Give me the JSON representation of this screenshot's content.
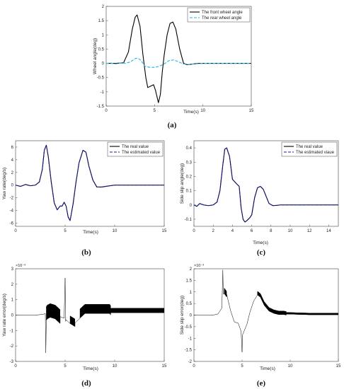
{
  "chart_data": [
    {
      "panel": "(a)",
      "type": "line",
      "xlabel": "Time(s)",
      "ylabel": "Wheel angle(deg)",
      "xlim": [
        0,
        15
      ],
      "ylim": [
        -1.5,
        2
      ],
      "xticks": [
        0,
        5,
        10,
        15
      ],
      "yticks": [
        -1.5,
        -1,
        -0.5,
        0,
        0.5,
        1,
        1.5,
        2
      ],
      "grid": false,
      "legend": "top-right",
      "series": [
        {
          "name": "The front wheel angle",
          "color": "#000000",
          "dash": "solid",
          "x": [
            0,
            1,
            1.8,
            2.3,
            2.7,
            3.0,
            3.2,
            3.5,
            3.8,
            4.1,
            4.3,
            4.6,
            4.9,
            5.1,
            5.4,
            5.6,
            5.8,
            6.0,
            6.3,
            6.6,
            6.9,
            7.2,
            7.6,
            8.0,
            8.4,
            8.8,
            9.5,
            11,
            15
          ],
          "y": [
            0,
            0,
            0.02,
            0.4,
            1.2,
            1.62,
            1.7,
            1.3,
            0.3,
            -0.5,
            -0.85,
            -0.8,
            -0.75,
            -0.95,
            -1.38,
            -1.1,
            -0.3,
            0.3,
            1.0,
            1.4,
            1.45,
            1.2,
            0.5,
            0,
            -0.05,
            -0.03,
            0,
            0,
            0
          ]
        },
        {
          "name": "The rear wheel angle",
          "color": "#1eb4e6",
          "dash": "dashed",
          "x": [
            0,
            0.5,
            1,
            1.5,
            2,
            2.5,
            3.0,
            3.3,
            3.6,
            4.0,
            4.5,
            5.0,
            5.5,
            6.0,
            6.5,
            7.0,
            7.5,
            8.0,
            8.5,
            9.0,
            10,
            12,
            15
          ],
          "y": [
            0,
            0.01,
            -0.02,
            0.02,
            0,
            0.05,
            0.17,
            0.18,
            0.1,
            -0.1,
            -0.14,
            -0.14,
            -0.1,
            -0.02,
            0.1,
            0.12,
            0.05,
            -0.02,
            -0.04,
            -0.02,
            0,
            0,
            0
          ]
        }
      ]
    },
    {
      "panel": "(b)",
      "type": "line",
      "xlabel": "Time(s)",
      "ylabel": "Yaw rate(deg/s)",
      "xlim": [
        0,
        15
      ],
      "ylim": [
        -6.5,
        7
      ],
      "xticks": [
        0,
        5,
        10,
        15
      ],
      "yticks": [
        -6,
        -4,
        -2,
        0,
        2,
        4,
        6
      ],
      "grid": false,
      "legend": "top-right",
      "series": [
        {
          "name": "The real value",
          "color": "#000000",
          "dash": "solid",
          "x": [
            0,
            0.5,
            1,
            1.5,
            2,
            2.4,
            2.7,
            2.9,
            3.1,
            3.3,
            3.6,
            3.9,
            4.2,
            4.5,
            4.7,
            4.9,
            5.1,
            5.3,
            5.5,
            5.8,
            6.1,
            6.4,
            6.8,
            7.1,
            7.4,
            7.8,
            8.2,
            8.7,
            9.3,
            10,
            12,
            15
          ],
          "y": [
            0,
            -0.2,
            0.1,
            -0.1,
            0,
            0.5,
            2.5,
            5.5,
            6.3,
            4.5,
            0.5,
            -2.8,
            -3.9,
            -3.3,
            -3.3,
            -2.7,
            -3.3,
            -5.0,
            -5.6,
            -3.0,
            0.5,
            3.5,
            5.5,
            5.2,
            3.0,
            0.8,
            -0.3,
            -0.3,
            -0.15,
            0,
            0,
            0
          ]
        },
        {
          "name": "The estimated value",
          "color": "#1a1aa6",
          "dash": "dashed",
          "x": [
            0,
            0.5,
            1,
            1.5,
            2,
            2.4,
            2.7,
            2.9,
            3.1,
            3.3,
            3.6,
            3.9,
            4.2,
            4.5,
            4.7,
            4.9,
            5.1,
            5.3,
            5.5,
            5.8,
            6.1,
            6.4,
            6.8,
            7.1,
            7.4,
            7.8,
            8.2,
            8.7,
            9.3,
            10,
            12,
            15
          ],
          "y": [
            0,
            -0.2,
            0.1,
            -0.1,
            0,
            0.5,
            2.5,
            5.5,
            6.3,
            4.5,
            0.5,
            -2.8,
            -3.9,
            -3.3,
            -3.3,
            -2.7,
            -3.3,
            -5.0,
            -5.6,
            -3.0,
            0.5,
            3.5,
            5.5,
            5.2,
            3.0,
            0.8,
            -0.3,
            -0.3,
            -0.15,
            0,
            0,
            0
          ]
        }
      ]
    },
    {
      "panel": "(c)",
      "type": "line",
      "xlabel": "Time(s)",
      "ylabel": "Side slip angle(deg)",
      "xlim": [
        0,
        15
      ],
      "ylim": [
        -0.15,
        0.45
      ],
      "xticks": [
        0,
        2,
        4,
        6,
        8,
        10,
        12,
        14
      ],
      "yticks": [
        -0.1,
        0,
        0.1,
        0.2,
        0.3,
        0.4
      ],
      "grid": false,
      "legend": "top-right",
      "series": [
        {
          "name": "The real value",
          "color": "#000000",
          "dash": "solid",
          "x": [
            0,
            0.3,
            0.6,
            1,
            1.5,
            2,
            2.4,
            2.7,
            3.0,
            3.2,
            3.4,
            3.7,
            4.0,
            4.4,
            4.7,
            4.9,
            5.1,
            5.3,
            5.5,
            5.8,
            6.0,
            6.3,
            6.6,
            6.9,
            7.2,
            7.5,
            7.8,
            8.2,
            8.6,
            9,
            10,
            12,
            15
          ],
          "y": [
            0,
            -0.01,
            0.01,
            0,
            -0.005,
            0,
            0.02,
            0.1,
            0.28,
            0.39,
            0.4,
            0.34,
            0.18,
            0.15,
            0.13,
            -0.02,
            -0.1,
            -0.12,
            -0.11,
            -0.09,
            -0.07,
            0.05,
            0.12,
            0.13,
            0.11,
            0.06,
            0.01,
            -0.005,
            -0.003,
            0,
            0,
            0,
            0
          ]
        },
        {
          "name": "The estimated viaue",
          "color": "#1a1aa6",
          "dash": "dashed",
          "x": [
            0,
            0.3,
            0.6,
            1,
            1.5,
            2,
            2.4,
            2.7,
            3.0,
            3.2,
            3.4,
            3.7,
            4.0,
            4.4,
            4.7,
            4.9,
            5.1,
            5.3,
            5.5,
            5.8,
            6.0,
            6.3,
            6.6,
            6.9,
            7.2,
            7.5,
            7.8,
            8.2,
            8.6,
            9,
            10,
            12,
            15
          ],
          "y": [
            0,
            -0.01,
            0.01,
            0,
            -0.005,
            0,
            0.02,
            0.1,
            0.28,
            0.39,
            0.4,
            0.34,
            0.18,
            0.15,
            0.13,
            -0.02,
            -0.1,
            -0.12,
            -0.11,
            -0.09,
            -0.07,
            0.05,
            0.12,
            0.13,
            0.11,
            0.06,
            0.01,
            -0.005,
            -0.003,
            0,
            0,
            0,
            0
          ]
        }
      ]
    },
    {
      "panel": "(d)",
      "type": "line",
      "xlabel": "Time(s)",
      "ylabel": "Yaw rate error(deg/s)",
      "exponent": "×10⁻³",
      "xlim": [
        0,
        15
      ],
      "ylim": [
        -3,
        3
      ],
      "xticks": [
        0,
        5,
        10,
        15
      ],
      "yticks": [
        -3,
        -2,
        -1,
        0,
        1,
        2,
        3
      ],
      "grid": false,
      "series": [
        {
          "name": "",
          "color": "#000000",
          "dash": "solid",
          "x": [
            0,
            1,
            2,
            2.8,
            3.0,
            3.05,
            3.1,
            3.2,
            3.5,
            4.0,
            4.5,
            4.9,
            5.0,
            5.05,
            5.1,
            5.5,
            6.0,
            6.5,
            7.0,
            8.0,
            9.0,
            9.5,
            9.6,
            12,
            15
          ],
          "y": [
            0,
            0,
            0,
            0.05,
            0.1,
            -2.45,
            0.1,
            0.2,
            0.3,
            0.2,
            -0.1,
            -0.2,
            2.4,
            -0.4,
            -0.3,
            -0.3,
            -0.5,
            0.1,
            0.4,
            0.4,
            0.4,
            0.4,
            0.3,
            0.3,
            0.3
          ],
          "oscillation": [
            {
              "from": 3.1,
              "to": 4.6,
              "amplitude": 0.45
            },
            {
              "from": 5.2,
              "to": 6.3,
              "amplitude": 0.25
            },
            {
              "from": 6.5,
              "to": 9.6,
              "amplitude": 0.3
            },
            {
              "from": 9.6,
              "to": 15,
              "amplitude": 0.15
            }
          ]
        }
      ]
    },
    {
      "panel": "(e)",
      "type": "line",
      "xlabel": "Time(s)",
      "ylabel": "Side slip error(deg)",
      "exponent": "×10⁻³",
      "xlim": [
        0,
        15
      ],
      "ylim": [
        -2,
        2
      ],
      "xticks": [
        0,
        5,
        10,
        15
      ],
      "yticks": [
        -2,
        -1.5,
        -1,
        -0.5,
        0,
        0.5,
        1,
        1.5,
        2
      ],
      "grid": false,
      "series": [
        {
          "name": "",
          "color": "#000000",
          "dash": "solid",
          "x": [
            0,
            1,
            2,
            2.5,
            2.9,
            3.0,
            3.05,
            3.15,
            3.4,
            3.8,
            4.2,
            4.6,
            4.9,
            5.0,
            5.05,
            5.2,
            5.5,
            5.8,
            6.2,
            6.6,
            6.9,
            7.3,
            7.8,
            8.3,
            8.8,
            9.3,
            9.6,
            12,
            15
          ],
          "y": [
            0,
            0,
            0,
            0.05,
            0.3,
            1.95,
            0.9,
            1.05,
            0.9,
            0.2,
            -0.3,
            -0.35,
            -0.7,
            -1.6,
            -0.85,
            -0.7,
            -0.4,
            0.1,
            0.6,
            0.95,
            0.85,
            0.5,
            0.25,
            0.15,
            0.1,
            0.1,
            0.08,
            0.05,
            0.05
          ],
          "oscillation": [
            {
              "from": 3.1,
              "to": 3.7,
              "amplitude": 0.12
            },
            {
              "from": 6.4,
              "to": 9.6,
              "amplitude": 0.08
            },
            {
              "from": 9.6,
              "to": 15,
              "amplitude": 0.04
            }
          ]
        }
      ]
    }
  ]
}
